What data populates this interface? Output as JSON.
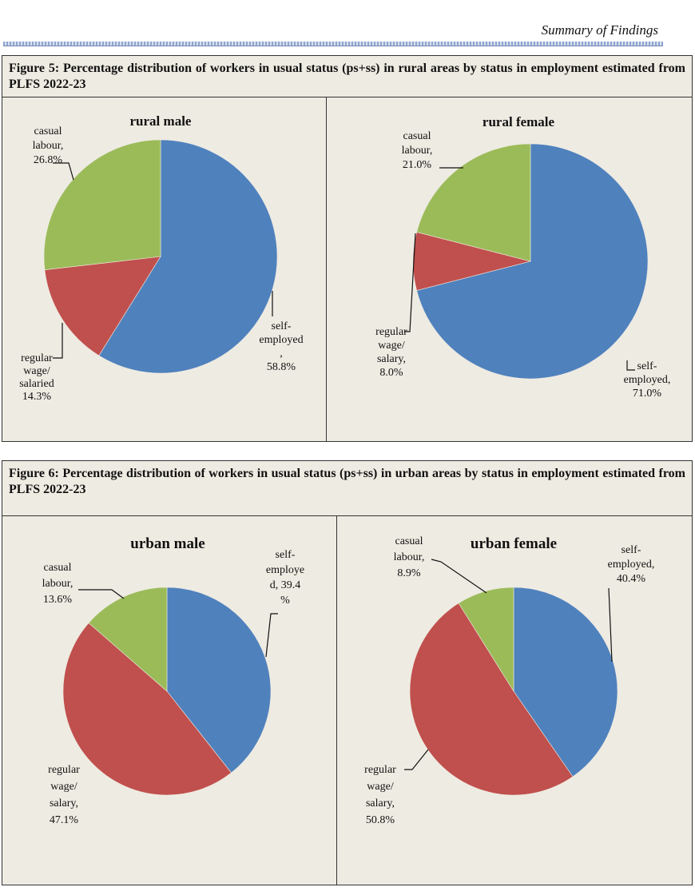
{
  "header": {
    "title": "Summary of Findings"
  },
  "figures": {
    "fig5": {
      "title": "Figure 5: Percentage distribution of workers in usual status (ps+ss) in rural areas by status in employment estimated from PLFS 2022-23"
    },
    "fig6": {
      "title": "Figure 6: Percentage distribution of workers in usual status (ps+ss) in urban areas by status in employment estimated from PLFS 2022-23"
    }
  },
  "colors": {
    "self_employed": "#4f81bd",
    "regular_wage": "#c0504d",
    "casual_labour": "#9bbb59"
  },
  "chart_data": [
    {
      "type": "pie",
      "title": "rural male",
      "categories": [
        "self-employed",
        "regular wage/salaried",
        "casual labour"
      ],
      "values": [
        58.8,
        14.3,
        26.8
      ],
      "label_lines": [
        [
          "self-",
          "employed",
          ",",
          "58.8%"
        ],
        [
          "regular",
          "wage/",
          "salaried",
          "14.3%"
        ],
        [
          "casual",
          "labour,",
          "26.8%"
        ]
      ]
    },
    {
      "type": "pie",
      "title": "rural female",
      "categories": [
        "self-employed",
        "regular wage/salary",
        "casual labour"
      ],
      "values": [
        71.0,
        8.0,
        21.0
      ],
      "label_lines": [
        [
          "self-",
          "employed,",
          "71.0%"
        ],
        [
          "regular",
          "wage/",
          "salary,",
          "8.0%"
        ],
        [
          "casual",
          "labour,",
          "21.0%"
        ]
      ]
    },
    {
      "type": "pie",
      "title": "urban male",
      "categories": [
        "self-employed",
        "regular wage/salary",
        "casual labour"
      ],
      "values": [
        39.4,
        47.1,
        13.6
      ],
      "label_lines": [
        [
          "self-",
          "employe",
          "d, 39.4",
          "%"
        ],
        [
          "regular",
          "wage/",
          "salary,",
          "47.1%"
        ],
        [
          "casual",
          "labour,",
          "13.6%"
        ]
      ]
    },
    {
      "type": "pie",
      "title": "urban female",
      "categories": [
        "self-employed",
        "regular wage/salary",
        "casual labour"
      ],
      "values": [
        40.4,
        50.8,
        8.9
      ],
      "label_lines": [
        [
          "self-",
          "employed,",
          "40.4%"
        ],
        [
          "regular",
          "wage/",
          "salary,",
          "50.8%"
        ],
        [
          "casual",
          "labour,",
          "8.9%"
        ]
      ]
    }
  ]
}
